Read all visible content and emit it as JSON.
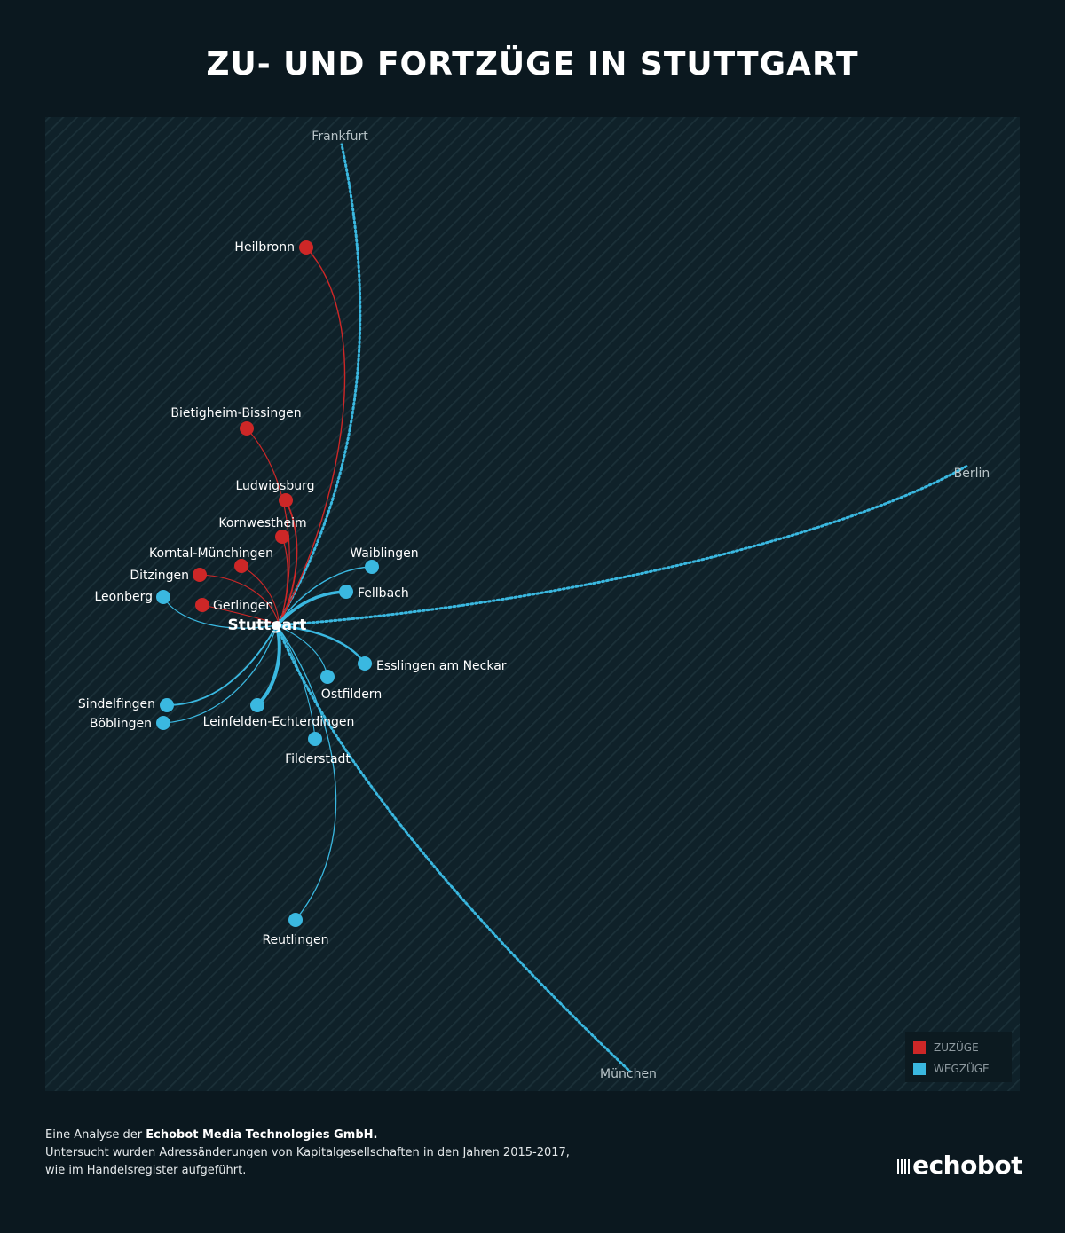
{
  "title": "ZU- UND FORTZÜGE IN STUTTGART",
  "colors": {
    "background": "#0b181f",
    "map_panel": "#0f2129",
    "zuzuege": "#cd2727",
    "wegzuege": "#3ab8e0"
  },
  "center": {
    "name": "Stuttgart"
  },
  "zuzuege": [
    {
      "name": "Heilbronn"
    },
    {
      "name": "Bietigheim-Bissingen"
    },
    {
      "name": "Ludwigsburg"
    },
    {
      "name": "Kornwestheim"
    },
    {
      "name": "Korntal-Münchingen"
    },
    {
      "name": "Ditzingen"
    },
    {
      "name": "Gerlingen"
    }
  ],
  "wegzuege": [
    {
      "name": "Waiblingen"
    },
    {
      "name": "Fellbach"
    },
    {
      "name": "Leonberg"
    },
    {
      "name": "Esslingen am Neckar"
    },
    {
      "name": "Ostfildern"
    },
    {
      "name": "Sindelfingen"
    },
    {
      "name": "Böblingen"
    },
    {
      "name": "Leinfelden-Echterdingen"
    },
    {
      "name": "Filderstadt"
    },
    {
      "name": "Reutlingen"
    }
  ],
  "external": [
    {
      "name": "Frankfurt"
    },
    {
      "name": "Berlin"
    },
    {
      "name": "München"
    }
  ],
  "legend": {
    "zuzuege_label": "ZUZÜGE",
    "wegzuege_label": "WEGZÜGE"
  },
  "footer": {
    "line1_prefix": "Eine Analyse der ",
    "line1_company": "Echobot Media Technologies GmbH.",
    "line2": "Untersucht wurden Adressänderungen von Kapitalgesellschaften in den Jahren 2015-2017,",
    "line3": "wie im Handelsregister aufgeführt."
  },
  "logo": {
    "text": "echobot"
  }
}
